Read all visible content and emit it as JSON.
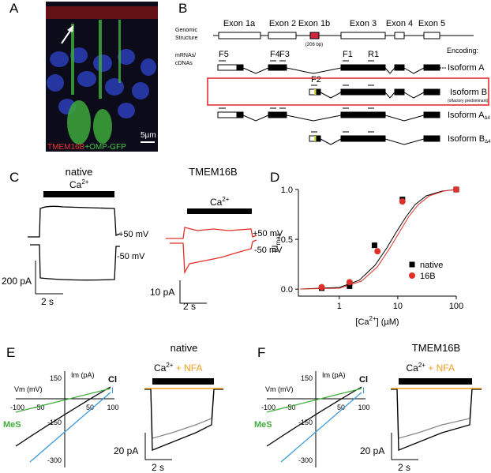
{
  "panel_a": {
    "letter": "A",
    "scale": "5µm",
    "caption_red": "TMEM16B",
    "caption_green": "+OMP-GFP"
  },
  "panel_b": {
    "letter": "B",
    "genomic_1": "Genomic",
    "genomic_2": "Structure",
    "exon_1a": "Exon 1a",
    "exon_2": "Exon 2",
    "exon_1b": "Exon 1b",
    "exon_1b_size": "(206 bp)",
    "exon_3": "Exon 3",
    "exon_4": "Exon 4",
    "exon_5": "Exon 5",
    "mrna_1": "mRNAs/",
    "mrna_2": "cDNAs",
    "encoding": "Encoding:",
    "f5": "F5",
    "f4": "F4",
    "f3": "F3",
    "f1": "F1",
    "r1": "R1",
    "f2": "F2",
    "isoform_a": "Isoform A",
    "isoform_b": "Isoform B",
    "isoform_b_note": "(olfactory predominant)",
    "isoform_a_d4": {
      "text": "Isoform A",
      "sub": "Δ4"
    },
    "isoform_b_d4": {
      "text": "Isoform B",
      "sub": "Δ4"
    }
  },
  "panel_c": {
    "letter": "C",
    "native": {
      "title": "native",
      "ca": {
        "base": "Ca",
        "sup": "2+"
      },
      "plus": "+50 mV",
      "minus": "-50 mV",
      "scale_y": "200 pA",
      "scale_x": "2 s"
    },
    "tmem": {
      "title": "TMEM16B",
      "ca": {
        "base": "Ca",
        "sup": "2+"
      },
      "plus": "+50 mV",
      "minus": "-50 mV",
      "scale_y": "10 pA",
      "scale_x": "2 s"
    }
  },
  "panel_d": {
    "letter": "D"
  },
  "chart_data": {
    "type": "scatter",
    "xlabel": {
      "pre": "[Ca",
      "sup": "2+",
      "post": "] (µM)"
    },
    "ylabel": {
      "base": "I/I",
      "sub": "max"
    },
    "xscale": "log",
    "xlim": [
      0.2,
      100
    ],
    "ylim": [
      -0.07,
      1.0
    ],
    "xticks": [
      1,
      10,
      100
    ],
    "yticks": [
      {
        "value": 0,
        "label": "0.0"
      },
      0.5,
      {
        "value": 1,
        "label": "1.0"
      }
    ],
    "legend": "lower right",
    "series": [
      {
        "name": "native",
        "color": "#000000",
        "marker": "square",
        "x": [
          0.5,
          1.5,
          4,
          12,
          100
        ],
        "values": [
          0.01,
          0.03,
          0.44,
          0.9,
          1.0
        ]
      },
      {
        "name": "16B",
        "color": "#e0302a",
        "marker": "circle",
        "x": [
          0.5,
          1.5,
          4.5,
          12,
          100
        ],
        "values": [
          0.02,
          0.07,
          0.38,
          0.88,
          1.0
        ]
      }
    ]
  },
  "panel_e": {
    "letter": "E",
    "title": "native",
    "im": "Im (pA)",
    "vm": "Vm (mV)",
    "cl": "Cl",
    "i": "I",
    "mes": "MeS",
    "y150": "150",
    "ym150": "-150",
    "ym300": "-300",
    "xm100": "-100",
    "xm50": "-50",
    "x50": "50",
    "x100": "100",
    "ca": {
      "base": "Ca",
      "sup": "2+",
      "nfa": " + NFA"
    },
    "scale_y": "20 pA",
    "scale_x": "2 s"
  },
  "panel_f": {
    "letter": "F",
    "title": "TMEM16B",
    "im": "Im (pA)",
    "vm": "Vm (mV)",
    "cl": "Cl",
    "i": "I",
    "mes": "MeS",
    "y150": "150",
    "ym150": "-150",
    "ym300": "-300",
    "xm100": "-100",
    "xm50": "-50",
    "x50": "50",
    "x100": "100",
    "ca": {
      "base": "Ca",
      "sup": "2+",
      "nfa": " + NFA"
    },
    "scale_y": "20 pA",
    "scale_x": "2 s"
  }
}
